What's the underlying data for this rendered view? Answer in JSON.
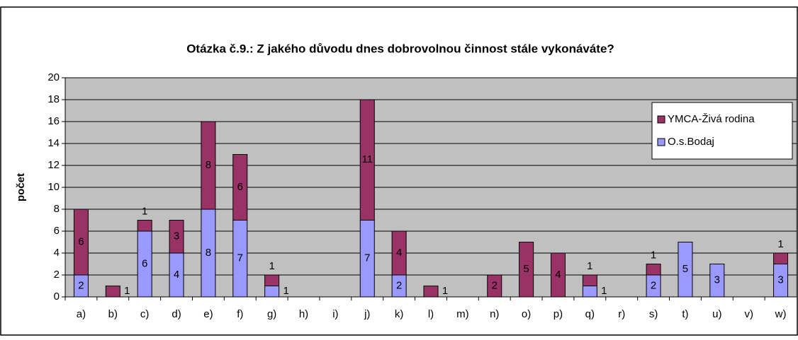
{
  "chart_data": {
    "type": "stacked_bar",
    "title": "Otázka č.9.: Z jakého důvodu dnes dobrovolnou činnost stále vykonáváte?",
    "y_label": "počet",
    "categories": [
      "a)",
      "b)",
      "c)",
      "d)",
      "e)",
      "f)",
      "g)",
      "h)",
      "i)",
      "j)",
      "k)",
      "l)",
      "m)",
      "n)",
      "o)",
      "p)",
      "q)",
      "r)",
      "s)",
      "t)",
      "u)",
      "v)",
      "w)"
    ],
    "series": [
      {
        "name": "O.s.Bodaj",
        "color": "#9999ff",
        "values": [
          2,
          0,
          6,
          4,
          8,
          7,
          1,
          0,
          0,
          7,
          2,
          0,
          0,
          0,
          0,
          0,
          1,
          0,
          2,
          5,
          3,
          0,
          3
        ]
      },
      {
        "name": "YMCA-Živá rodina",
        "color": "#993366",
        "values": [
          6,
          1,
          1,
          3,
          8,
          6,
          1,
          0,
          0,
          11,
          4,
          1,
          0,
          2,
          5,
          4,
          1,
          0,
          1,
          0,
          0,
          0,
          1
        ]
      }
    ],
    "ylim": [
      0,
      20
    ],
    "yticks": [
      0,
      2,
      4,
      6,
      8,
      10,
      12,
      14,
      16,
      18,
      20
    ],
    "grid": true,
    "legend": "top-right"
  }
}
